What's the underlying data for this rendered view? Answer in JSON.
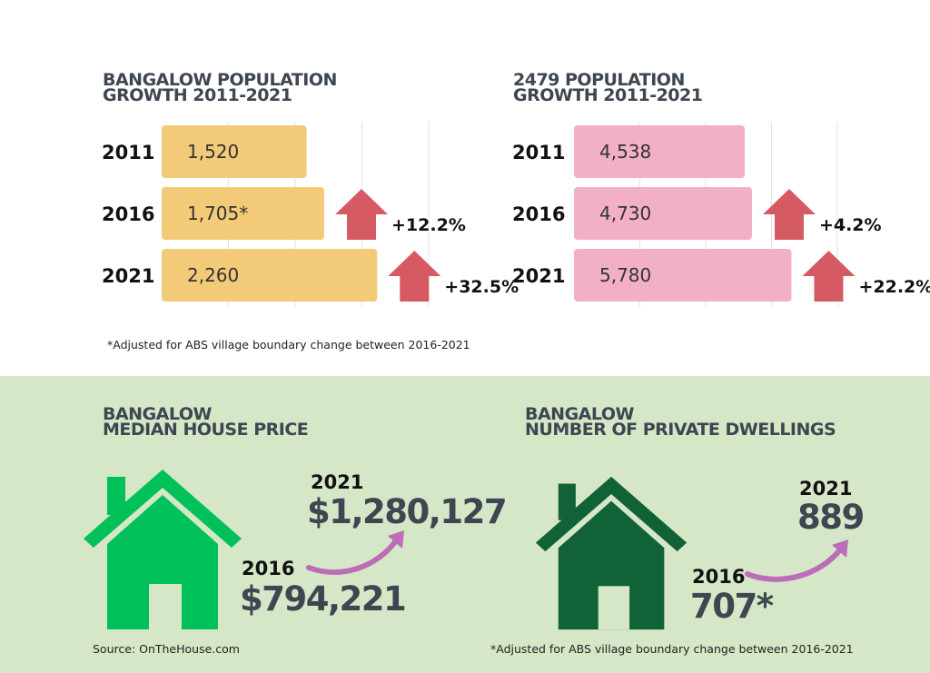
{
  "charts": {
    "bangalow": {
      "title_line1": "BANGALOW POPULATION",
      "title_line2": "GROWTH 2011-2021",
      "bar_color": "#f3cb78",
      "arrow_color": "#d65a63",
      "years": [
        "2011",
        "2016",
        "2021"
      ],
      "value_labels": [
        "1,520",
        "1,705*",
        "2,260"
      ],
      "changes": [
        "",
        "+12.2%",
        "+32.5%"
      ]
    },
    "postcode_2479": {
      "title_line1": "2479 POPULATION",
      "title_line2": "GROWTH 2011-2021",
      "bar_color": "#f2b0c8",
      "arrow_color": "#d65a63",
      "years": [
        "2011",
        "2016",
        "2021"
      ],
      "value_labels": [
        "4,538",
        "4,730",
        "5,780"
      ],
      "changes": [
        "",
        "+4.2%",
        "+22.2%"
      ]
    }
  },
  "chart_data": [
    {
      "type": "bar",
      "title": "BANGALOW POPULATION GROWTH 2011-2021",
      "orientation": "horizontal",
      "categories": [
        "2011",
        "2016",
        "2021"
      ],
      "values": [
        1520,
        1705,
        2260
      ],
      "annotations": [
        "",
        "+12.2%",
        "+32.5%"
      ],
      "xlim": [
        0,
        2800
      ],
      "grid": true
    },
    {
      "type": "bar",
      "title": "2479 POPULATION GROWTH 2011-2021",
      "orientation": "horizontal",
      "categories": [
        "2011",
        "2016",
        "2021"
      ],
      "values": [
        4538,
        4730,
        5780
      ],
      "annotations": [
        "",
        "+4.2%",
        "+22.2%"
      ],
      "xlim": [
        0,
        7000
      ],
      "grid": true
    }
  ],
  "top_note": "*Adjusted for ABS village boundary change between 2016-2021",
  "price": {
    "title_line1": "BANGALOW",
    "title_line2": "MEDIAN HOUSE PRICE",
    "year_2021": "2021",
    "value_2021": "$1,280,127",
    "year_2016": "2016",
    "value_2016": "$794,221",
    "house_color": "#00c05a",
    "arrow_color": "#bd6cb8"
  },
  "dwellings": {
    "title_line1": "BANGALOW",
    "title_line2": "NUMBER OF PRIVATE DWELLINGS",
    "year_2021": "2021",
    "value_2021": "889",
    "year_2016": "2016",
    "value_2016": "707*",
    "house_color": "#116236",
    "arrow_color": "#bd6cb8"
  },
  "source_note": "Source: OnTheHouse.com",
  "bottom_note": "*Adjusted for ABS village boundary change between 2016-2021",
  "background": {
    "top": "#ffffff",
    "bottom": "#d5e7c7"
  }
}
